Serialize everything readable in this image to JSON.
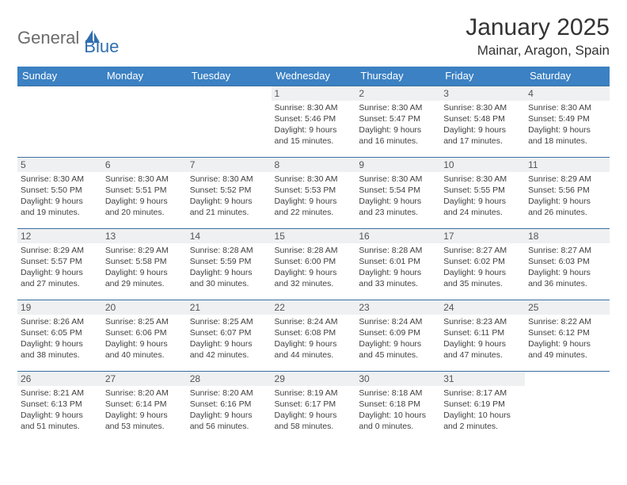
{
  "brand": {
    "part1": "General",
    "part2": "Blue"
  },
  "title": "January 2025",
  "location": "Mainar, Aragon, Spain",
  "colors": {
    "header_bg": "#3b81c3",
    "header_text": "#ffffff",
    "row_border": "#3b6fa0",
    "daynum_bg": "#eef0f1",
    "brand_gray": "#6b6b6b",
    "brand_blue": "#2f6fae",
    "logo_fill": "#2f6fae"
  },
  "weekdays": [
    "Sunday",
    "Monday",
    "Tuesday",
    "Wednesday",
    "Thursday",
    "Friday",
    "Saturday"
  ],
  "weeks": [
    [
      null,
      null,
      null,
      {
        "n": "1",
        "sunrise": "8:30 AM",
        "sunset": "5:46 PM",
        "daylight": "9 hours and 15 minutes."
      },
      {
        "n": "2",
        "sunrise": "8:30 AM",
        "sunset": "5:47 PM",
        "daylight": "9 hours and 16 minutes."
      },
      {
        "n": "3",
        "sunrise": "8:30 AM",
        "sunset": "5:48 PM",
        "daylight": "9 hours and 17 minutes."
      },
      {
        "n": "4",
        "sunrise": "8:30 AM",
        "sunset": "5:49 PM",
        "daylight": "9 hours and 18 minutes."
      }
    ],
    [
      {
        "n": "5",
        "sunrise": "8:30 AM",
        "sunset": "5:50 PM",
        "daylight": "9 hours and 19 minutes."
      },
      {
        "n": "6",
        "sunrise": "8:30 AM",
        "sunset": "5:51 PM",
        "daylight": "9 hours and 20 minutes."
      },
      {
        "n": "7",
        "sunrise": "8:30 AM",
        "sunset": "5:52 PM",
        "daylight": "9 hours and 21 minutes."
      },
      {
        "n": "8",
        "sunrise": "8:30 AM",
        "sunset": "5:53 PM",
        "daylight": "9 hours and 22 minutes."
      },
      {
        "n": "9",
        "sunrise": "8:30 AM",
        "sunset": "5:54 PM",
        "daylight": "9 hours and 23 minutes."
      },
      {
        "n": "10",
        "sunrise": "8:30 AM",
        "sunset": "5:55 PM",
        "daylight": "9 hours and 24 minutes."
      },
      {
        "n": "11",
        "sunrise": "8:29 AM",
        "sunset": "5:56 PM",
        "daylight": "9 hours and 26 minutes."
      }
    ],
    [
      {
        "n": "12",
        "sunrise": "8:29 AM",
        "sunset": "5:57 PM",
        "daylight": "9 hours and 27 minutes."
      },
      {
        "n": "13",
        "sunrise": "8:29 AM",
        "sunset": "5:58 PM",
        "daylight": "9 hours and 29 minutes."
      },
      {
        "n": "14",
        "sunrise": "8:28 AM",
        "sunset": "5:59 PM",
        "daylight": "9 hours and 30 minutes."
      },
      {
        "n": "15",
        "sunrise": "8:28 AM",
        "sunset": "6:00 PM",
        "daylight": "9 hours and 32 minutes."
      },
      {
        "n": "16",
        "sunrise": "8:28 AM",
        "sunset": "6:01 PM",
        "daylight": "9 hours and 33 minutes."
      },
      {
        "n": "17",
        "sunrise": "8:27 AM",
        "sunset": "6:02 PM",
        "daylight": "9 hours and 35 minutes."
      },
      {
        "n": "18",
        "sunrise": "8:27 AM",
        "sunset": "6:03 PM",
        "daylight": "9 hours and 36 minutes."
      }
    ],
    [
      {
        "n": "19",
        "sunrise": "8:26 AM",
        "sunset": "6:05 PM",
        "daylight": "9 hours and 38 minutes."
      },
      {
        "n": "20",
        "sunrise": "8:25 AM",
        "sunset": "6:06 PM",
        "daylight": "9 hours and 40 minutes."
      },
      {
        "n": "21",
        "sunrise": "8:25 AM",
        "sunset": "6:07 PM",
        "daylight": "9 hours and 42 minutes."
      },
      {
        "n": "22",
        "sunrise": "8:24 AM",
        "sunset": "6:08 PM",
        "daylight": "9 hours and 44 minutes."
      },
      {
        "n": "23",
        "sunrise": "8:24 AM",
        "sunset": "6:09 PM",
        "daylight": "9 hours and 45 minutes."
      },
      {
        "n": "24",
        "sunrise": "8:23 AM",
        "sunset": "6:11 PM",
        "daylight": "9 hours and 47 minutes."
      },
      {
        "n": "25",
        "sunrise": "8:22 AM",
        "sunset": "6:12 PM",
        "daylight": "9 hours and 49 minutes."
      }
    ],
    [
      {
        "n": "26",
        "sunrise": "8:21 AM",
        "sunset": "6:13 PM",
        "daylight": "9 hours and 51 minutes."
      },
      {
        "n": "27",
        "sunrise": "8:20 AM",
        "sunset": "6:14 PM",
        "daylight": "9 hours and 53 minutes."
      },
      {
        "n": "28",
        "sunrise": "8:20 AM",
        "sunset": "6:16 PM",
        "daylight": "9 hours and 56 minutes."
      },
      {
        "n": "29",
        "sunrise": "8:19 AM",
        "sunset": "6:17 PM",
        "daylight": "9 hours and 58 minutes."
      },
      {
        "n": "30",
        "sunrise": "8:18 AM",
        "sunset": "6:18 PM",
        "daylight": "10 hours and 0 minutes."
      },
      {
        "n": "31",
        "sunrise": "8:17 AM",
        "sunset": "6:19 PM",
        "daylight": "10 hours and 2 minutes."
      },
      null
    ]
  ],
  "labels": {
    "sunrise": "Sunrise:",
    "sunset": "Sunset:",
    "daylight": "Daylight:"
  }
}
